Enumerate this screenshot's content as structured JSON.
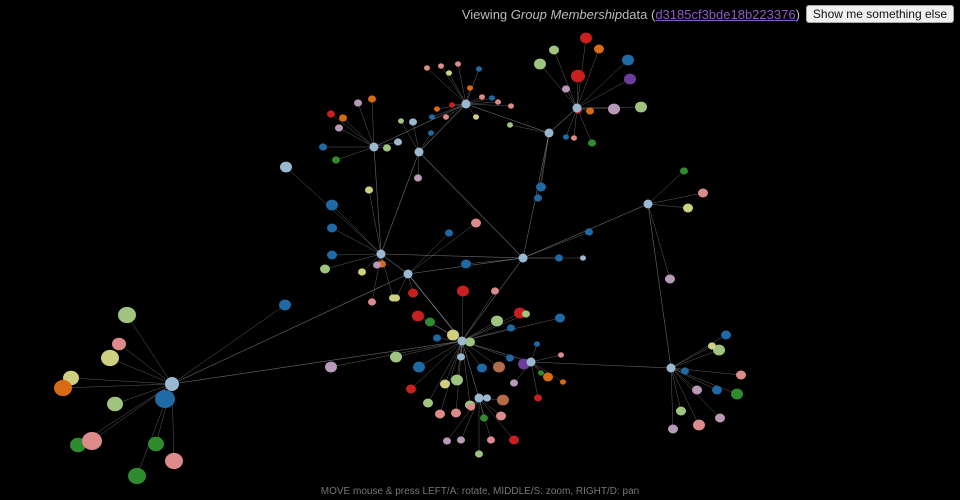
{
  "header": {
    "prefix": "Viewing ",
    "dataset_name": "Group Membership",
    "mid": " data (",
    "dataset_id": "d3185cf3bde18b223376",
    "suffix": ")",
    "button_label": "Show me something else"
  },
  "footer": {
    "controls_hint": "MOVE mouse & press LEFT/A: rotate, MIDDLE/S: zoom, RIGHT/D: pan"
  },
  "colors": {
    "background": "#000000",
    "edge": "#9a9a9a",
    "hub": "#9ab8d0",
    "palette": [
      "#1f6aa5",
      "#9ab8d0",
      "#dd8a8a",
      "#cfcf80",
      "#9fc480",
      "#2e8b2e",
      "#c81f1f",
      "#d86a14",
      "#6a3d9a",
      "#b89ab8",
      "#b46b4a"
    ]
  }
}
